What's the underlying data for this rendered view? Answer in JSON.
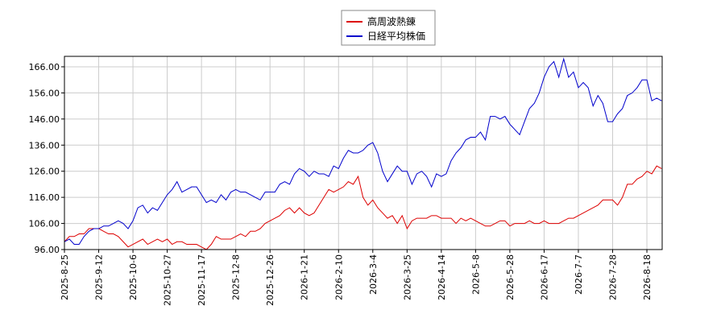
{
  "chart_data": {
    "type": "line",
    "categories": [
      "2025-8-25",
      null,
      null,
      null,
      null,
      null,
      null,
      "2025-9-12",
      null,
      null,
      null,
      null,
      null,
      null,
      "2025-10-6",
      null,
      null,
      null,
      null,
      null,
      null,
      "2025-10-27",
      null,
      null,
      null,
      null,
      null,
      null,
      "2025-11-17",
      null,
      null,
      null,
      null,
      null,
      null,
      "2025-12-8",
      null,
      null,
      null,
      null,
      null,
      null,
      "2025-12-26",
      null,
      null,
      null,
      null,
      null,
      null,
      "2026-1-21",
      null,
      null,
      null,
      null,
      null,
      null,
      "2026-2-10",
      null,
      null,
      null,
      null,
      null,
      null,
      "2026-3-4",
      null,
      null,
      null,
      null,
      null,
      null,
      "2026-3-25",
      null,
      null,
      null,
      null,
      null,
      null,
      "2026-4-14",
      null,
      null,
      null,
      null,
      null,
      null,
      "2026-5-8",
      null,
      null,
      null,
      null,
      null,
      null,
      "2026-5-28",
      null,
      null,
      null,
      null,
      null,
      null,
      "2026-6-17",
      null,
      null,
      null,
      null,
      null,
      null,
      "2026-7-7",
      null,
      null,
      null,
      null,
      null,
      null,
      "2026-7-28",
      null,
      null,
      null,
      null,
      null,
      null,
      "2026-8-18",
      null,
      null,
      null
    ],
    "series": [
      {
        "name": "高周波熱錬",
        "color": "#dd0000",
        "values": [
          99,
          101,
          101,
          102,
          102,
          104,
          104,
          104,
          103,
          102,
          102,
          101,
          99,
          97,
          98,
          99,
          100,
          98,
          99,
          100,
          99,
          100,
          98,
          99,
          99,
          98,
          98,
          98,
          97,
          96,
          98,
          101,
          100,
          100,
          100,
          101,
          102,
          101,
          103,
          103,
          104,
          106,
          107,
          108,
          109,
          111,
          112,
          110,
          112,
          110,
          109,
          110,
          113,
          116,
          119,
          118,
          119,
          120,
          122,
          121,
          124,
          116,
          113,
          115,
          112,
          110,
          108,
          109,
          106,
          109,
          104,
          107,
          108,
          108,
          108,
          109,
          109,
          108,
          108,
          108,
          106,
          108,
          107,
          108,
          107,
          106,
          105,
          105,
          106,
          107,
          107,
          105,
          106,
          106,
          106,
          107,
          106,
          106,
          107,
          106,
          106,
          106,
          107,
          108,
          108,
          109,
          110,
          111,
          112,
          113,
          115,
          115,
          115,
          113,
          116,
          121,
          121,
          123,
          124,
          126,
          125,
          128,
          127
        ]
      },
      {
        "name": "日経平均株価",
        "color": "#0000cc",
        "values": [
          99,
          100,
          98,
          98,
          101,
          103,
          104,
          104,
          105,
          105,
          106,
          107,
          106,
          104,
          107,
          112,
          113,
          110,
          112,
          111,
          114,
          117,
          119,
          122,
          118,
          119,
          120,
          120,
          117,
          114,
          115,
          114,
          117,
          115,
          118,
          119,
          118,
          118,
          117,
          116,
          115,
          118,
          118,
          118,
          121,
          122,
          121,
          125,
          127,
          126,
          124,
          126,
          125,
          125,
          124,
          128,
          127,
          131,
          134,
          133,
          133,
          134,
          136,
          137,
          133,
          126,
          122,
          125,
          128,
          126,
          126,
          121,
          125,
          126,
          124,
          120,
          125,
          124,
          125,
          130,
          133,
          135,
          138,
          139,
          139,
          141,
          138,
          147,
          147,
          146,
          147,
          144,
          142,
          140,
          145,
          150,
          152,
          156,
          162,
          166,
          168,
          162,
          169,
          162,
          164,
          158,
          160,
          158,
          151,
          155,
          152,
          145,
          145,
          148,
          150,
          155,
          156,
          158,
          161,
          161,
          153,
          154,
          153
        ]
      }
    ],
    "ylim": [
      96,
      170
    ],
    "yticks": [
      {
        "value": 96,
        "label": "96.00"
      },
      {
        "value": 106,
        "label": "106.00"
      },
      {
        "value": 116,
        "label": "116.00"
      },
      {
        "value": 126,
        "label": "126.00"
      },
      {
        "value": 136,
        "label": "136.00"
      },
      {
        "value": 146,
        "label": "146.00"
      },
      {
        "value": 156,
        "label": "156.00"
      },
      {
        "value": 166,
        "label": "166.00"
      }
    ],
    "grid": true,
    "legend": "top"
  }
}
